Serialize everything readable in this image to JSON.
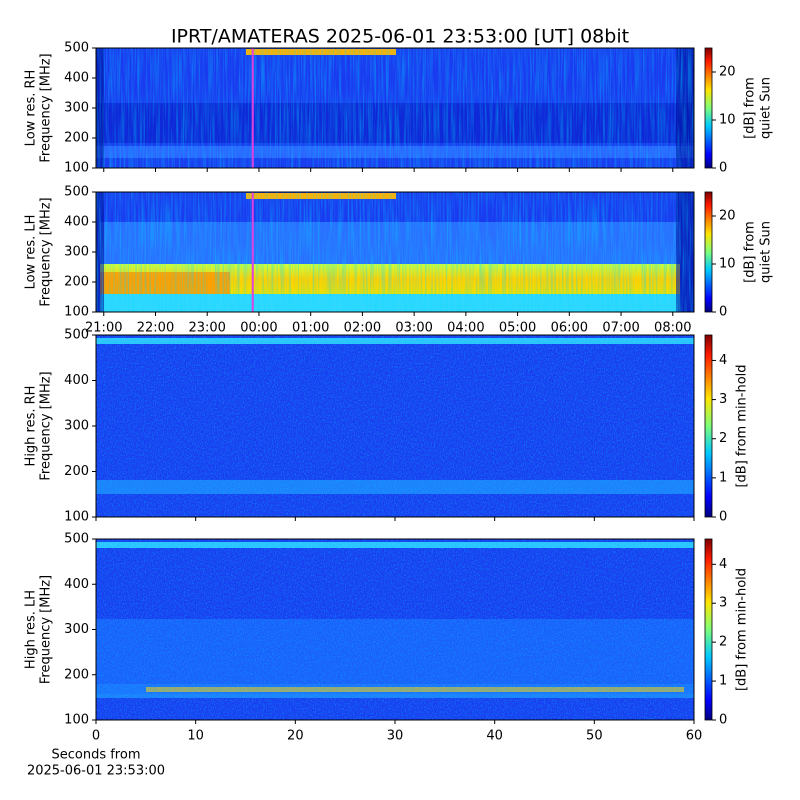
{
  "title": "IPRT/AMATERAS 2025-06-01 23:53:00 [UT]   08bit",
  "chart_data": [
    {
      "type": "heatmap",
      "style": "low-rh",
      "ylabel": [
        "Low res. RH",
        "Frequency [MHz]"
      ],
      "ylim": [
        100,
        500
      ],
      "yticks": [
        100,
        200,
        300,
        400,
        500
      ],
      "xlim": [
        20.85,
        32.41
      ],
      "cursor": 23.88,
      "cursor_color": "#e040e0",
      "colorbar_label": [
        "[dB] from",
        "quiet Sun"
      ],
      "clim": [
        0,
        25
      ],
      "cticks": [
        0,
        10,
        20
      ]
    },
    {
      "type": "heatmap",
      "style": "low-lh",
      "ylabel": [
        "Low res. LH",
        "Frequency [MHz]"
      ],
      "ylim": [
        100,
        500
      ],
      "yticks": [
        100,
        200,
        300,
        400,
        500
      ],
      "xlim": [
        20.85,
        32.41
      ],
      "xticks": [
        {
          "value": 21,
          "label": "21:00"
        },
        {
          "value": 22,
          "label": "22:00"
        },
        {
          "value": 23,
          "label": "23:00"
        },
        {
          "value": 24,
          "label": "00:00"
        },
        {
          "value": 25,
          "label": "01:00"
        },
        {
          "value": 26,
          "label": "02:00"
        },
        {
          "value": 27,
          "label": "03:00"
        },
        {
          "value": 28,
          "label": "04:00"
        },
        {
          "value": 29,
          "label": "05:00"
        },
        {
          "value": 30,
          "label": "06:00"
        },
        {
          "value": 31,
          "label": "07:00"
        },
        {
          "value": 32,
          "label": "08:00"
        }
      ],
      "cursor": 23.88,
      "cursor_color": "#e040e0",
      "colorbar_label": [
        "[dB] from",
        "quiet Sun"
      ],
      "clim": [
        0,
        25
      ],
      "cticks": [
        0,
        10,
        20
      ]
    },
    {
      "type": "heatmap",
      "style": "high-rh",
      "ylabel": [
        "High res. RH",
        "Frequency [MHz]"
      ],
      "ylim": [
        100,
        500
      ],
      "yticks": [
        100,
        200,
        300,
        400,
        500
      ],
      "xlim": [
        0,
        60
      ],
      "colorbar_label": [
        "[dB] from min-hold"
      ],
      "clim": [
        0,
        4.65
      ],
      "cticks": [
        0,
        1,
        2,
        3,
        4
      ]
    },
    {
      "type": "heatmap",
      "style": "high-lh",
      "ylabel": [
        "High res. LH",
        "Frequency [MHz]"
      ],
      "ylim": [
        100,
        500
      ],
      "yticks": [
        100,
        200,
        300,
        400,
        500
      ],
      "xlim": [
        0,
        60
      ],
      "xticks": [
        0,
        10,
        20,
        30,
        40,
        50,
        60
      ],
      "xlabel": [
        "Seconds from",
        "2025-06-01 23:53:00"
      ],
      "colorbar_label": [
        "[dB] from min-hold"
      ],
      "clim": [
        0,
        4.65
      ],
      "cticks": [
        0,
        1,
        2,
        3,
        4
      ]
    }
  ]
}
